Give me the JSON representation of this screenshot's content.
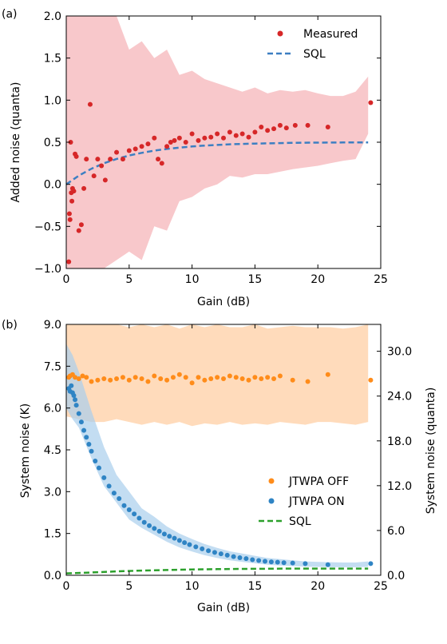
{
  "figure": {
    "panel_a_label": "(a)",
    "panel_b_label": "(b)"
  },
  "colors": {
    "measured": "#d62728",
    "measured_band": "#f4a3a8",
    "sql_a": "#3d7fc2",
    "off": "#ff8c1a",
    "off_band": "#ffd2aa",
    "on": "#2f84c4",
    "on_band": "#aacfec",
    "sql_b": "#2ca02c"
  },
  "chart_data": [
    {
      "type": "scatter",
      "panel": "(a)",
      "xlabel": "Gain (dB)",
      "ylabel": "Added noise (quanta)",
      "xlim": [
        0,
        25
      ],
      "ylim": [
        -1.0,
        2.0
      ],
      "xticks": [
        "0",
        "5",
        "10",
        "15",
        "20",
        "25"
      ],
      "yticks": [
        "−1.0",
        "−0.5",
        "0.0",
        "0.5",
        "1.0",
        "1.5",
        "2.0"
      ],
      "legend_position": "upper right",
      "legend": [
        "Measured",
        "SQL"
      ],
      "series": [
        {
          "name": "Measured",
          "kind": "points",
          "x": [
            0.2,
            0.25,
            0.3,
            0.35,
            0.4,
            0.45,
            0.5,
            0.6,
            0.7,
            0.8,
            1.0,
            1.2,
            1.4,
            1.6,
            1.9,
            2.2,
            2.5,
            2.8,
            3.1,
            3.5,
            4.0,
            4.5,
            5.0,
            5.5,
            6.0,
            6.5,
            7.0,
            7.3,
            7.6,
            8.0,
            8.3,
            8.6,
            9.0,
            9.5,
            10.0,
            10.5,
            11.0,
            11.5,
            12.0,
            12.5,
            13.0,
            13.5,
            14.0,
            14.5,
            15.0,
            15.5,
            16.0,
            16.5,
            17.0,
            17.5,
            18.2,
            19.2,
            20.8,
            24.2
          ],
          "y": [
            -0.92,
            -0.35,
            -0.42,
            0.5,
            -0.1,
            -0.2,
            -0.05,
            -0.08,
            0.36,
            0.33,
            -0.55,
            -0.48,
            -0.05,
            0.3,
            0.95,
            0.1,
            0.3,
            0.22,
            0.05,
            0.3,
            0.38,
            0.3,
            0.4,
            0.42,
            0.45,
            0.48,
            0.55,
            0.3,
            0.25,
            0.45,
            0.5,
            0.52,
            0.55,
            0.5,
            0.6,
            0.52,
            0.55,
            0.56,
            0.6,
            0.55,
            0.62,
            0.58,
            0.6,
            0.56,
            0.62,
            0.68,
            0.64,
            0.66,
            0.7,
            0.67,
            0.7,
            0.7,
            0.68,
            0.97
          ]
        },
        {
          "name": "SQL",
          "kind": "dashed-line",
          "x": [
            0,
            1,
            2,
            3,
            4,
            5,
            6,
            7,
            8,
            9,
            10,
            11,
            12,
            13,
            14,
            15,
            16,
            17,
            18,
            19,
            20,
            21,
            22,
            23,
            24
          ],
          "y": [
            0.0,
            0.103,
            0.185,
            0.25,
            0.301,
            0.342,
            0.374,
            0.4,
            0.42,
            0.436,
            0.45,
            0.46,
            0.468,
            0.475,
            0.48,
            0.484,
            0.487,
            0.49,
            0.492,
            0.494,
            0.495,
            0.496,
            0.497,
            0.497,
            0.498
          ]
        },
        {
          "kind": "band",
          "x": [
            0,
            0.5,
            1,
            2,
            3,
            4,
            5,
            6,
            7,
            8,
            9,
            10,
            11,
            12,
            13,
            14,
            15,
            16,
            17,
            18,
            19,
            20,
            21,
            22,
            23,
            24
          ],
          "lower": [
            -1.0,
            -1.0,
            -1.0,
            -1.0,
            -1.0,
            -0.9,
            -0.8,
            -0.9,
            -0.5,
            -0.55,
            -0.2,
            -0.15,
            -0.05,
            0.0,
            0.1,
            0.08,
            0.12,
            0.12,
            0.15,
            0.18,
            0.2,
            0.22,
            0.25,
            0.28,
            0.3,
            0.6
          ],
          "upper": [
            2.0,
            2.0,
            2.0,
            2.0,
            2.0,
            2.0,
            1.6,
            1.7,
            1.5,
            1.6,
            1.3,
            1.35,
            1.25,
            1.2,
            1.15,
            1.1,
            1.15,
            1.08,
            1.12,
            1.1,
            1.12,
            1.08,
            1.05,
            1.05,
            1.1,
            1.28
          ]
        }
      ]
    },
    {
      "type": "scatter",
      "panel": "(b)",
      "xlabel": "Gain (dB)",
      "ylabel": "System noise (K)",
      "ylabel_right": "System noise (quanta)",
      "xlim": [
        0,
        25
      ],
      "ylim": [
        0.0,
        9.0
      ],
      "ylim_right": [
        0.0,
        33.6
      ],
      "xticks": [
        "0",
        "5",
        "10",
        "15",
        "20",
        "25"
      ],
      "yticks": [
        "0.0",
        "1.5",
        "3.0",
        "4.5",
        "6.0",
        "7.5",
        "9.0"
      ],
      "yticks_right": [
        "0.0",
        "6.0",
        "12.0",
        "18.0",
        "24.0",
        "30.0"
      ],
      "legend_position": "center right",
      "legend": [
        "JTWPA OFF",
        "JTWPA ON",
        "SQL"
      ],
      "series": [
        {
          "name": "JTWPA OFF",
          "kind": "points",
          "x": [
            0.2,
            0.3,
            0.5,
            0.7,
            1.0,
            1.3,
            1.6,
            2.0,
            2.5,
            3.0,
            3.5,
            4.0,
            4.5,
            5.0,
            5.5,
            6.0,
            6.5,
            7.0,
            7.5,
            8.0,
            8.5,
            9.0,
            9.5,
            10.0,
            10.5,
            11.0,
            11.5,
            12.0,
            12.5,
            13.0,
            13.5,
            14.0,
            14.5,
            15.0,
            15.5,
            16.0,
            16.5,
            17.0,
            18.0,
            19.2,
            20.8,
            24.2
          ],
          "y": [
            7.1,
            7.15,
            7.2,
            7.1,
            7.05,
            7.15,
            7.1,
            6.95,
            7.0,
            7.05,
            7.0,
            7.05,
            7.1,
            7.0,
            7.1,
            7.05,
            6.95,
            7.15,
            7.05,
            7.0,
            7.1,
            7.2,
            7.1,
            6.9,
            7.1,
            7.0,
            7.05,
            7.1,
            7.05,
            7.15,
            7.1,
            7.05,
            7.0,
            7.1,
            7.05,
            7.1,
            7.05,
            7.15,
            7.0,
            6.95,
            7.2,
            7.0
          ]
        },
        {
          "name": "JTWPA ON",
          "kind": "points",
          "x": [
            0.2,
            0.3,
            0.4,
            0.5,
            0.6,
            0.7,
            0.8,
            1.0,
            1.2,
            1.4,
            1.6,
            1.8,
            2.0,
            2.3,
            2.6,
            3.0,
            3.4,
            3.8,
            4.2,
            4.6,
            5.0,
            5.4,
            5.8,
            6.2,
            6.6,
            7.0,
            7.4,
            7.8,
            8.2,
            8.6,
            9.0,
            9.4,
            9.8,
            10.3,
            10.8,
            11.3,
            11.8,
            12.3,
            12.8,
            13.3,
            13.8,
            14.3,
            14.8,
            15.3,
            15.8,
            16.3,
            16.8,
            17.3,
            18.0,
            19.0,
            20.8,
            24.2
          ],
          "y": [
            6.7,
            6.6,
            6.8,
            6.55,
            6.45,
            6.3,
            6.1,
            5.8,
            5.5,
            5.2,
            4.95,
            4.7,
            4.45,
            4.1,
            3.85,
            3.5,
            3.2,
            2.95,
            2.75,
            2.5,
            2.35,
            2.2,
            2.05,
            1.9,
            1.78,
            1.68,
            1.58,
            1.48,
            1.4,
            1.33,
            1.25,
            1.17,
            1.1,
            1.02,
            0.95,
            0.88,
            0.82,
            0.77,
            0.72,
            0.67,
            0.63,
            0.6,
            0.56,
            0.53,
            0.5,
            0.48,
            0.47,
            0.45,
            0.44,
            0.42,
            0.38,
            0.42
          ]
        },
        {
          "name": "SQL",
          "kind": "dashed-line",
          "x": [
            0,
            2,
            4,
            6,
            8,
            10,
            12,
            14,
            16,
            18,
            20,
            22,
            24
          ],
          "y": [
            0.07,
            0.1,
            0.14,
            0.17,
            0.19,
            0.21,
            0.22,
            0.23,
            0.235,
            0.24,
            0.24,
            0.24,
            0.24
          ]
        },
        {
          "kind": "band",
          "name_ref": "JTWPA OFF",
          "x": [
            0,
            1,
            2,
            3,
            4,
            5,
            6,
            7,
            8,
            9,
            10,
            11,
            12,
            13,
            14,
            15,
            16,
            17,
            18,
            19,
            20,
            21,
            22,
            23,
            24
          ],
          "lower": [
            5.7,
            5.6,
            5.5,
            5.5,
            5.6,
            5.5,
            5.4,
            5.5,
            5.4,
            5.5,
            5.35,
            5.45,
            5.4,
            5.5,
            5.4,
            5.45,
            5.4,
            5.5,
            5.45,
            5.4,
            5.5,
            5.5,
            5.45,
            5.4,
            5.5
          ],
          "upper": [
            9.0,
            9.0,
            9.0,
            9.0,
            9.0,
            8.9,
            9.0,
            8.9,
            9.0,
            8.85,
            9.0,
            8.9,
            9.0,
            8.9,
            8.9,
            9.0,
            8.85,
            8.9,
            8.95,
            8.9,
            8.9,
            8.9,
            8.85,
            8.9,
            9.0
          ]
        },
        {
          "kind": "band",
          "name_ref": "JTWPA ON",
          "x": [
            0,
            0.5,
            1,
            2,
            3,
            4,
            5,
            6,
            7,
            8,
            9,
            10,
            11,
            12,
            13,
            14,
            15,
            16,
            17,
            18,
            19,
            20,
            21,
            22,
            23,
            24
          ],
          "upper": [
            8.3,
            7.9,
            7.3,
            5.9,
            4.6,
            3.6,
            3.0,
            2.4,
            2.1,
            1.75,
            1.5,
            1.3,
            1.12,
            0.98,
            0.86,
            0.78,
            0.7,
            0.62,
            0.58,
            0.54,
            0.5,
            0.48,
            0.47,
            0.46,
            0.46,
            0.5
          ],
          "lower": [
            6.0,
            5.6,
            5.3,
            4.2,
            3.2,
            2.6,
            2.0,
            1.7,
            1.45,
            1.2,
            1.0,
            0.85,
            0.72,
            0.62,
            0.54,
            0.48,
            0.43,
            0.38,
            0.35,
            0.33,
            0.31,
            0.3,
            0.29,
            0.29,
            0.29,
            0.3
          ]
        }
      ]
    }
  ]
}
